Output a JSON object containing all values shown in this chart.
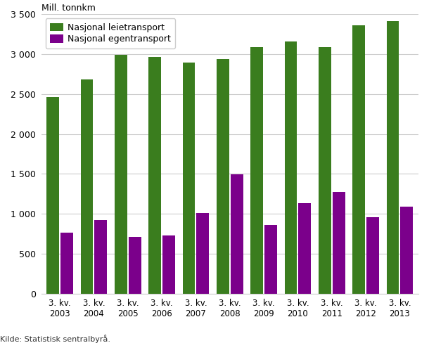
{
  "ylabel": "Mill. tonnkm",
  "categories": [
    "3. kv.\n2003",
    "3. kv.\n2004",
    "3. kv.\n2005",
    "3. kv.\n2006",
    "3. kv.\n2007",
    "3. kv.\n2008",
    "3. kv.\n2009",
    "3. kv.\n2010",
    "3. kv.\n2011",
    "3. kv.\n2012",
    "3. kv.\n2013"
  ],
  "leietransport": [
    2460,
    2680,
    2990,
    2960,
    2890,
    2940,
    3090,
    3155,
    3085,
    3360,
    3415
  ],
  "egentransport": [
    765,
    925,
    715,
    725,
    1010,
    1490,
    860,
    1135,
    1270,
    960,
    1090
  ],
  "color_leie": "#3a7d1e",
  "color_egen": "#7b008b",
  "ylim": [
    0,
    3500
  ],
  "yticks": [
    0,
    500,
    1000,
    1500,
    2000,
    2500,
    3000,
    3500
  ],
  "ytick_labels": [
    "0",
    "500",
    "1 000",
    "1 500",
    "2 000",
    "2 500",
    "3 000",
    "3 500"
  ],
  "legend_leie": "Nasjonal leietransport",
  "legend_egen": "Nasjonal egentransport",
  "source": "Kilde: Statistisk sentralbyrå.",
  "background_color": "#ffffff",
  "grid_color": "#cccccc",
  "bar_width": 0.37,
  "bar_gap": 0.04
}
